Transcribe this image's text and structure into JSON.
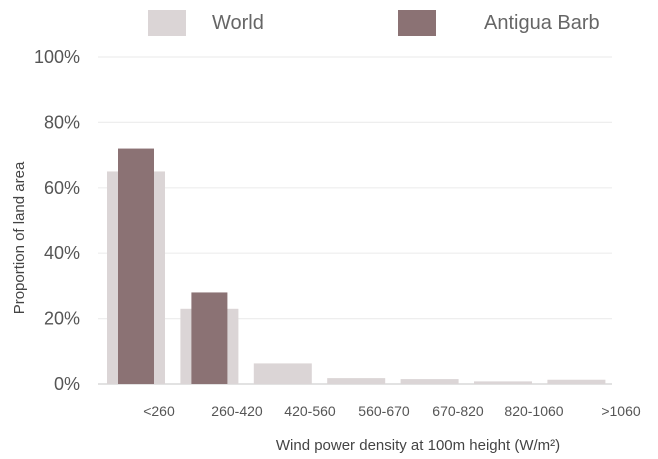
{
  "chart_data": {
    "type": "bar",
    "title": "",
    "xlabel": "Wind power density at 100m height (W/m²)",
    "ylabel": "Proportion of land area",
    "ylim": [
      0,
      100
    ],
    "y_ticks": [
      "0%",
      "20%",
      "40%",
      "60%",
      "80%",
      "100%"
    ],
    "y_tick_values": [
      0,
      20,
      40,
      60,
      80,
      100
    ],
    "grid": true,
    "legend_position": "top",
    "categories": [
      "<260",
      "260-420",
      "420-560",
      "560-670",
      "670-820",
      "820-1060",
      ">1060"
    ],
    "series": [
      {
        "name": "World",
        "color": "#dbd5d6",
        "values": [
          65,
          23,
          6.3,
          1.8,
          1.5,
          0.8,
          1.3
        ]
      },
      {
        "name": "Antigua Barb",
        "color": "#8b7274",
        "values": [
          72,
          28,
          0,
          0,
          0,
          0,
          0
        ]
      }
    ]
  }
}
